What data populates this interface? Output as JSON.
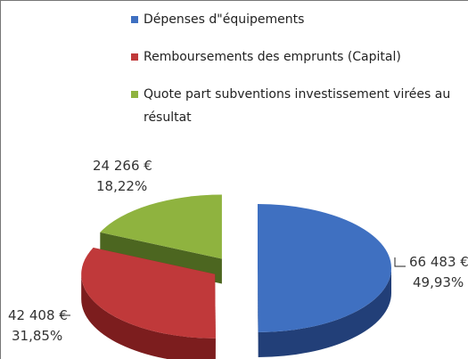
{
  "chart_data": {
    "type": "pie",
    "categories": [
      "Dépenses d\"équipements",
      "Remboursements des emprunts (Capital)",
      "Quote part subventions investissement virées au résultat"
    ],
    "values": [
      66483,
      42408,
      24266
    ],
    "value_labels": [
      "66 483 €",
      "42 408 €",
      "24 266 €"
    ],
    "percentages": [
      49.93,
      31.85,
      18.22
    ],
    "percentage_labels": [
      "49,93%",
      "31,85%",
      "18,22%"
    ],
    "colors": [
      "#3f70c1",
      "#c0393a",
      "#8fb33f"
    ],
    "side_colors": [
      "#223f78",
      "#7c1d1e",
      "#4c6620"
    ],
    "legend": "top"
  }
}
